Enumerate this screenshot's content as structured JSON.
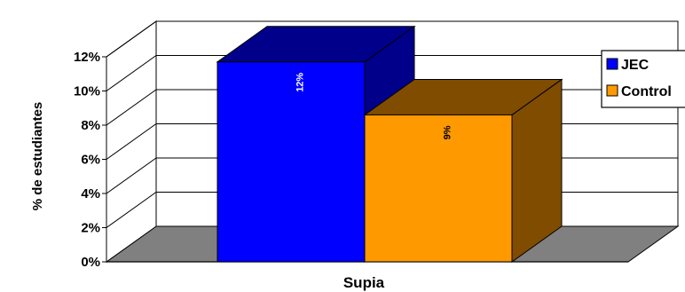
{
  "chart_data": {
    "type": "bar",
    "three_d": true,
    "categories": [
      "Supia"
    ],
    "series": [
      {
        "name": "JEC",
        "values": [
          11.7
        ],
        "label": "12%",
        "color": "#0000FF",
        "side_color": "#00008B",
        "label_color": "#FFFFFF"
      },
      {
        "name": "Control",
        "values": [
          8.6
        ],
        "label": "9%",
        "color": "#FF9900",
        "side_color": "#7F4C00",
        "label_color": "#000000"
      }
    ],
    "xlabel": "Supia",
    "ylabel": "% de estudiantes",
    "ylim": [
      0,
      12
    ],
    "yticks": [
      "0%",
      "2%",
      "4%",
      "6%",
      "8%",
      "10%",
      "12%"
    ],
    "grid": true,
    "floor_color": "#808080",
    "legend_position": "right"
  }
}
